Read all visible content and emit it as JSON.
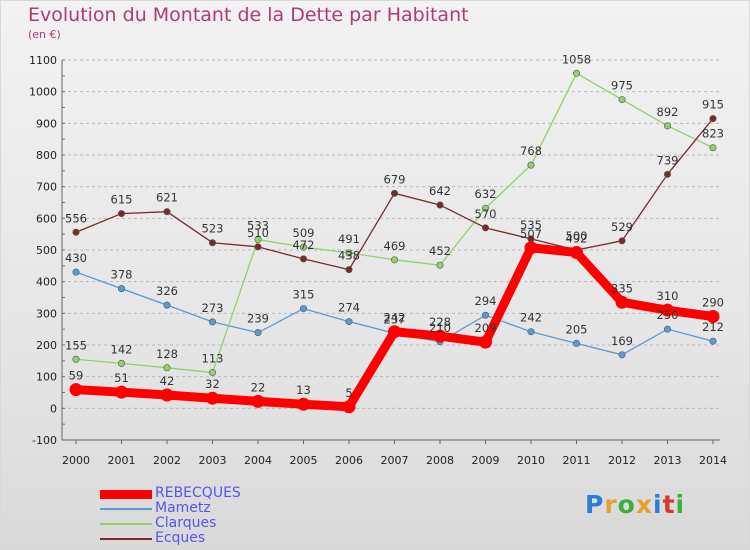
{
  "title": "Evolution du Montant de la Dette par Habitant",
  "subtitle": "(en €)",
  "brand": {
    "text": "Proxiti",
    "colors": [
      "#2a7fd4",
      "#e8a12c",
      "#3cae3c",
      "#e8a12c",
      "#2a7fd4",
      "#d43a2a",
      "#3cae3c"
    ]
  },
  "chart_data": {
    "type": "line",
    "title": "Evolution du Montant de la Dette par Habitant",
    "subtitle": "(en €)",
    "xlabel": "",
    "ylabel": "",
    "ylim": [
      -100,
      1100
    ],
    "yticks": [
      -100,
      0,
      100,
      200,
      300,
      400,
      500,
      600,
      700,
      800,
      900,
      1000,
      1100
    ],
    "x": [
      "2000",
      "2001",
      "2002",
      "2003",
      "2004",
      "2005",
      "2006",
      "2007",
      "2008",
      "2009",
      "2010",
      "2011",
      "2012",
      "2013",
      "2014"
    ],
    "grid": "horizontal dashed",
    "legend_position": "bottom-left",
    "series": [
      {
        "name": "REBECQUES",
        "color": "#ff0000",
        "values": [
          59,
          51,
          42,
          32,
          22,
          13,
          5,
          242,
          228,
          209,
          507,
          492,
          335,
          310,
          290
        ]
      },
      {
        "name": "Mametz",
        "color": "#5b9bd5",
        "values": [
          430,
          378,
          326,
          273,
          239,
          315,
          274,
          237,
          210,
          294,
          242,
          205,
          169,
          250,
          212
        ]
      },
      {
        "name": "Clarques",
        "color": "#8fd16b",
        "values": [
          155,
          142,
          128,
          113,
          533,
          509,
          491,
          469,
          452,
          632,
          768,
          1058,
          975,
          892,
          823
        ]
      },
      {
        "name": "Ecques",
        "color": "#7b2a2a",
        "values": [
          556,
          615,
          621,
          523,
          510,
          472,
          438,
          679,
          642,
          570,
          535,
          500,
          529,
          739,
          915
        ]
      }
    ]
  }
}
